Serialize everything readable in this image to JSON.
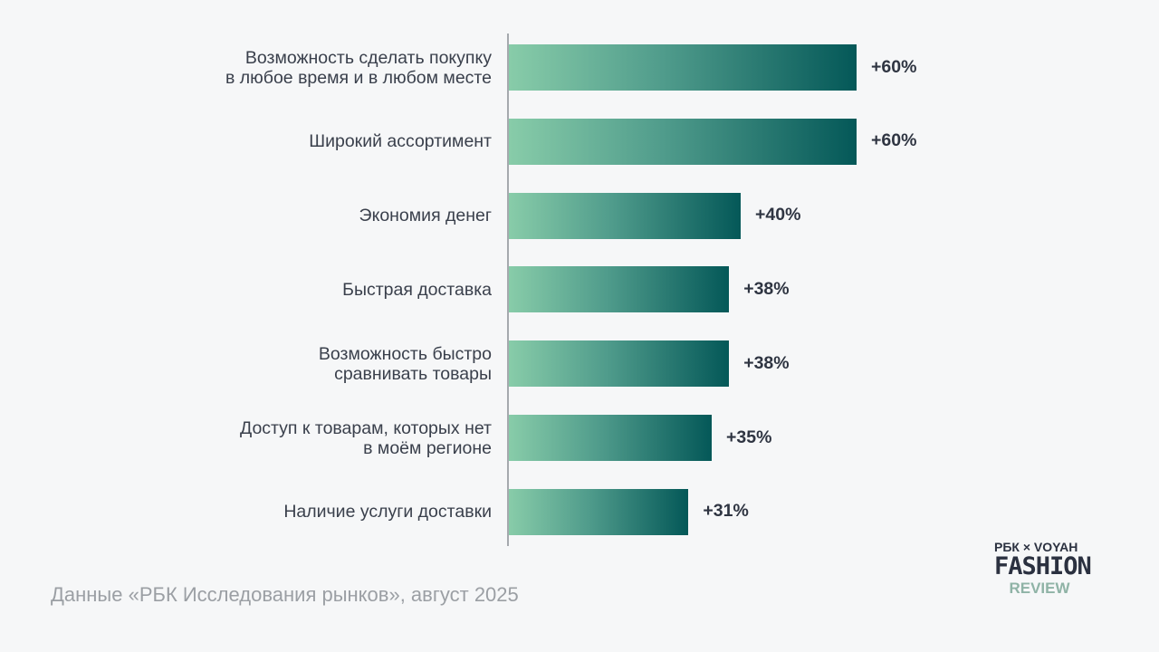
{
  "chart_data": {
    "type": "bar",
    "orientation": "horizontal",
    "categories": [
      "Возможность сделать покупку\nв любое время и в любом месте",
      "Широкий ассортимент",
      "Экономия денег",
      "Быстрая доставка",
      "Возможность быстро\nсравнивать товары",
      "Доступ к товарам, которых нет\nв моём регионе",
      "Наличие услуги доставки"
    ],
    "values": [
      60,
      60,
      40,
      38,
      38,
      35,
      31
    ],
    "value_labels": [
      "+60%",
      "+60%",
      "+40%",
      "+38%",
      "+38%",
      "+35%",
      "+31%"
    ],
    "grid": false,
    "colors": {
      "gradient_start": "#88cca9",
      "gradient_end": "#045858"
    }
  },
  "source": "Данные «РБК Исследования рынков», август 2025",
  "logo": {
    "top": "РБК × VOYAH",
    "line1": "FASHION",
    "line2": "REVIEW"
  }
}
